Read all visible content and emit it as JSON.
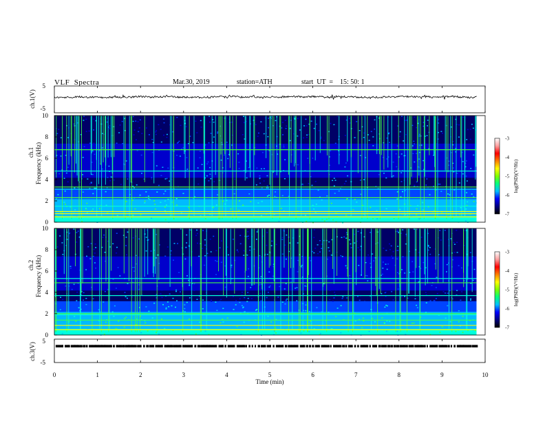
{
  "header": {
    "title": "VLF  Spectra",
    "date": "Mar.30, 2019",
    "station": "station=ATH",
    "start": "start  UT  =    15: 50: 1"
  },
  "colors": {
    "spectrum": [
      "#000066",
      "#0000cc",
      "#0044ff",
      "#00bbff",
      "#00ffdd",
      "#44ff44",
      "#ffff00",
      "#ff5500",
      "#cc0000"
    ],
    "colorbar": [
      "#000000",
      "#000080",
      "#0000ff",
      "#00c0ff",
      "#00ff80",
      "#80ff00",
      "#ffff00",
      "#ff8000",
      "#ff0000",
      "#ffa0a0",
      "#ffffff"
    ],
    "trace": "#000000"
  },
  "chart_data": [
    {
      "type": "line",
      "panel": "ch1",
      "ylabel": "ch.1(V)",
      "ylim": [
        -5,
        5
      ],
      "yticks": [
        "5",
        "-5"
      ],
      "xlim": [
        0,
        10
      ]
    },
    {
      "type": "heatmap",
      "panel": "ch1-spectrogram",
      "ylabel_top": "ch.1",
      "ylabel": "Frequency  (kHz)",
      "ylim": [
        0,
        10
      ],
      "yticks": [
        "0",
        "2",
        "4",
        "6",
        "8",
        "10"
      ],
      "xlim": [
        0,
        10
      ],
      "bands_khz": [
        0.5,
        0.8,
        1.0,
        1.5,
        2.3,
        3.1,
        3.3,
        4.8,
        6.8
      ],
      "colorbar": {
        "label": "log(PSD)(V²/Hz)",
        "range": [
          -7,
          -3
        ],
        "ticks": [
          "-3",
          "-4",
          "-5",
          "-6",
          "-7"
        ]
      }
    },
    {
      "type": "heatmap",
      "panel": "ch2-spectrogram",
      "ylabel_top": "ch.2",
      "ylabel": "Frequency  (kHz)",
      "ylim": [
        0,
        10
      ],
      "yticks": [
        "0",
        "2",
        "4",
        "6",
        "8",
        "10"
      ],
      "xlim": [
        0,
        10
      ],
      "bands_khz": [
        0.5,
        0.9,
        1.4,
        1.9,
        2.0,
        3.7,
        4.9,
        5.3
      ],
      "colorbar": {
        "label": "log(PSD)(V²/Hz)",
        "range": [
          -7,
          -3
        ],
        "ticks": [
          "-3",
          "-4",
          "-5",
          "-6",
          "-7"
        ]
      }
    },
    {
      "type": "line",
      "panel": "ch3",
      "ylabel": "ch.3(V)",
      "ylim": [
        -5,
        5
      ],
      "yticks": [
        "5",
        "-5"
      ],
      "xlim": [
        0,
        10
      ],
      "level": 2
    }
  ],
  "xaxis": {
    "label": "Time  (min)",
    "ticks": [
      "0",
      "1",
      "2",
      "3",
      "4",
      "5",
      "6",
      "7",
      "8",
      "9",
      "10"
    ]
  }
}
